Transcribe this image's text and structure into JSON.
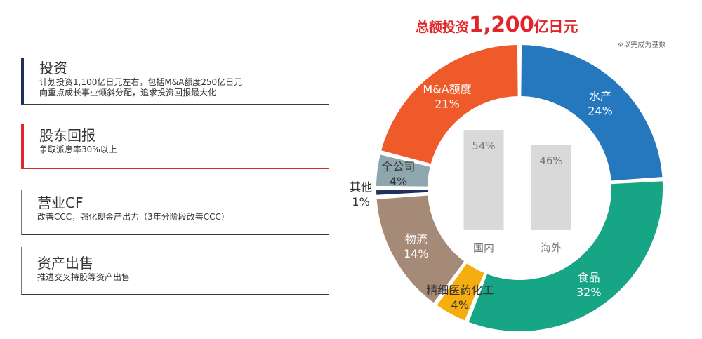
{
  "items": [
    {
      "title": "投资",
      "lines": [
        "计划投资1,100亿日元左右，包括M&A额度250亿日元",
        "向重点成长事业倾斜分配，追求投资回报最大化"
      ],
      "color": "#1f2f5e"
    },
    {
      "title": "股东回报",
      "lines": [
        "争取派息率30%以上"
      ],
      "color": "#e1252a"
    },
    {
      "title": "营业CF",
      "lines": [
        "改善CCC，强化现金产出力（3年分阶段改善CCC）"
      ],
      "color": "#777777"
    },
    {
      "title": "资产出售",
      "lines": [
        "推进交叉持股等资产出售"
      ],
      "color": "#777777"
    }
  ],
  "total": {
    "prefix": "总额投资",
    "amount": "1,200",
    "unit": "亿日元"
  },
  "note": "※以完成为基数",
  "chart_data": [
    {
      "type": "pie",
      "donut": true,
      "slices": [
        {
          "label": "水产",
          "value": 24,
          "value_label": "24%",
          "color": "#2578be"
        },
        {
          "label": "食品",
          "value": 32,
          "value_label": "32%",
          "color": "#16a585"
        },
        {
          "label": "精细医药化工",
          "value": 4,
          "value_label": "4%",
          "color": "#f5ae0e"
        },
        {
          "label": "物流",
          "value": 14,
          "value_label": "14%",
          "color": "#a68a78"
        },
        {
          "label": "其他",
          "value": 1,
          "value_label": "1%",
          "color": "#1f2f5e"
        },
        {
          "label": "全公司",
          "value": 4,
          "value_label": "4%",
          "color": "#8ea6ad"
        },
        {
          "label": "M&A额度",
          "value": 21,
          "value_label": "21%",
          "color": "#ef5a2b"
        }
      ]
    },
    {
      "type": "bar",
      "categories": [
        "国内",
        "海外"
      ],
      "values": [
        54,
        46
      ],
      "value_labels": [
        "54%",
        "46%"
      ],
      "color": "#d9d9d9",
      "ylim": [
        0,
        54
      ]
    }
  ]
}
